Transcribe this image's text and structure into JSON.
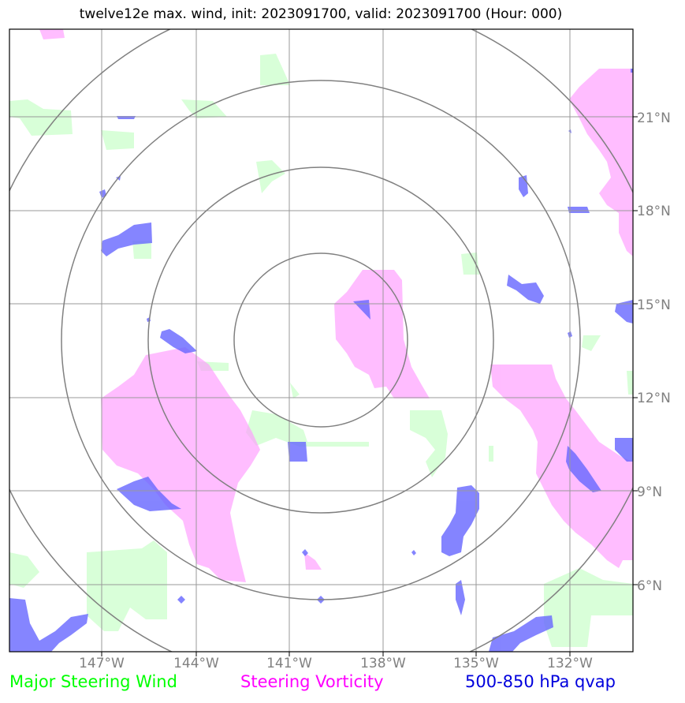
{
  "title": "twelve12e max. wind, init: 2023091700, valid: 2023091700 (Hour: 000)",
  "map": {
    "lon_labels": [
      "147°W",
      "144°W",
      "141°W",
      "138°W",
      "135°W",
      "132°W"
    ],
    "lat_labels": [
      "21°N",
      "18°N",
      "15°N",
      "12°N",
      "9°N",
      "6°N"
    ],
    "range_rings": 4,
    "colors": {
      "wind": "#ccffcc",
      "vorticity": "#ff99ff",
      "qvap": "#6666ff",
      "grid": "#999999",
      "ring": "#808080"
    }
  },
  "legend": {
    "wind": "Major Steering Wind",
    "vorticity": "Steering Vorticity",
    "qvap": "500-850 hPa qvap"
  }
}
